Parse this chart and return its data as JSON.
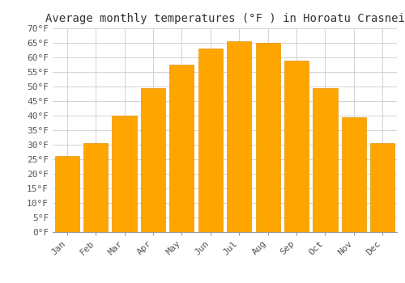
{
  "title": "Average monthly temperatures (°F ) in Horoatu Crasnei",
  "months": [
    "Jan",
    "Feb",
    "Mar",
    "Apr",
    "May",
    "Jun",
    "Jul",
    "Aug",
    "Sep",
    "Oct",
    "Nov",
    "Dec"
  ],
  "values": [
    26.1,
    30.5,
    40.0,
    49.5,
    57.5,
    63.0,
    65.5,
    65.0,
    59.0,
    49.5,
    39.5,
    30.5
  ],
  "bar_color": "#FFA500",
  "bar_edge_color": "#E8950A",
  "ylim": [
    0,
    70
  ],
  "yticks": [
    0,
    5,
    10,
    15,
    20,
    25,
    30,
    35,
    40,
    45,
    50,
    55,
    60,
    65,
    70
  ],
  "bg_color": "#FFFFFF",
  "grid_color": "#CCCCCC",
  "title_fontsize": 10,
  "tick_fontsize": 8,
  "title_color": "#333333",
  "tick_color": "#555555"
}
